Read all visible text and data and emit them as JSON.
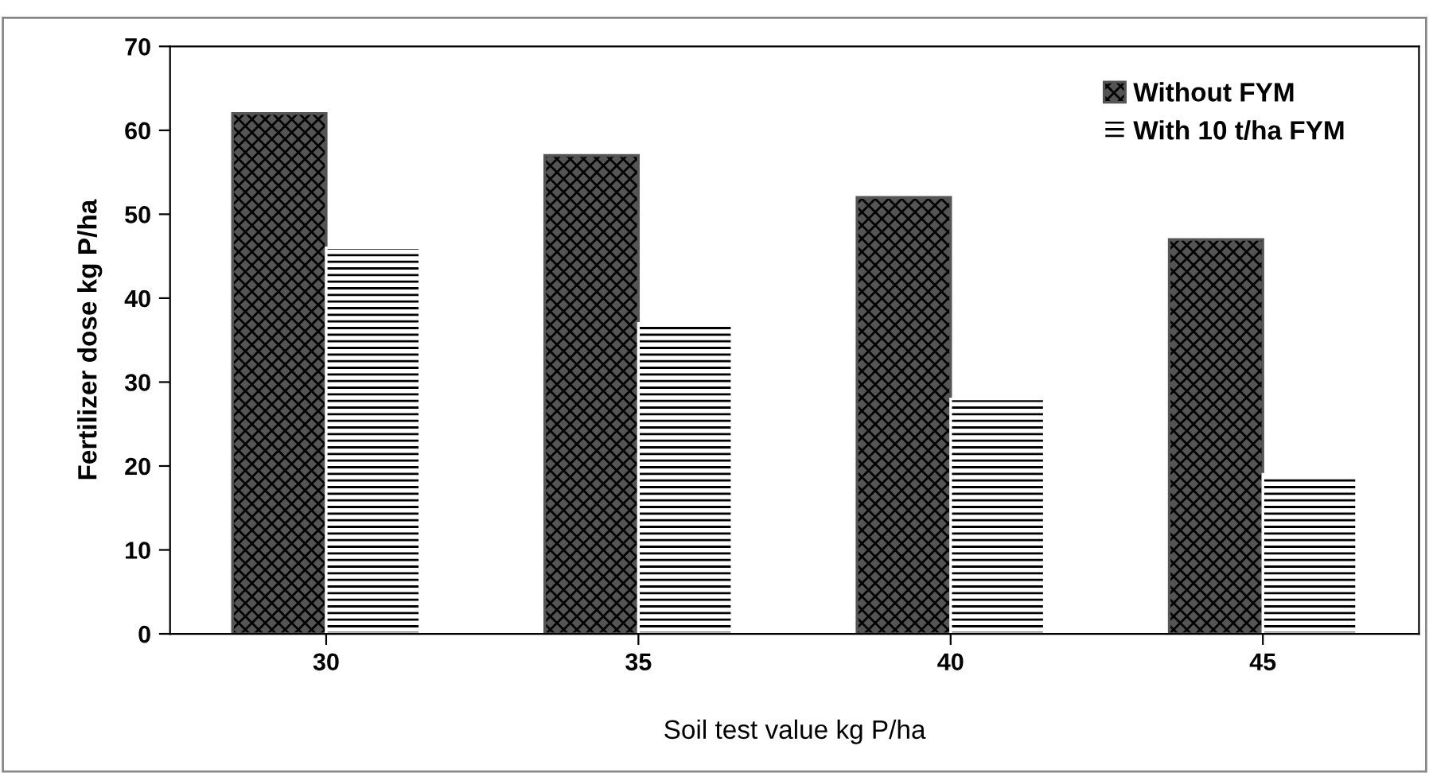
{
  "chart_data": {
    "type": "bar",
    "xlabel": "Soil test value kg P/ha",
    "ylabel": "Fertilizer dose kg P/ha",
    "categories": [
      "30",
      "35",
      "40",
      "45"
    ],
    "series": [
      {
        "name": "Without FYM",
        "color": "#555555",
        "values": [
          62,
          57,
          52,
          47
        ]
      },
      {
        "name": "With 10 t/ha FYM",
        "color": "#ffffff",
        "values": [
          46,
          37,
          28,
          19
        ]
      }
    ],
    "ylim": [
      0,
      70
    ],
    "yticks": [
      0,
      10,
      20,
      30,
      40,
      50,
      60,
      70
    ],
    "grid": false,
    "legend": "top right"
  }
}
